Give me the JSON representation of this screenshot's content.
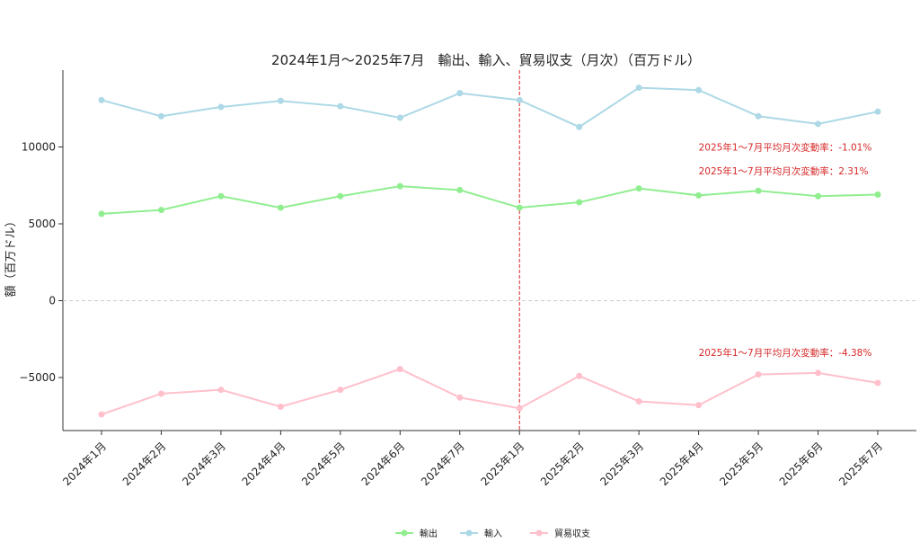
{
  "chart_data": {
    "type": "line",
    "title": "2024年1月～2025年7月　輸出、輸入、貿易収支（月次）（百万ドル）",
    "xlabel": "",
    "ylabel": "額（百万ドル）",
    "categories": [
      "2024年1月",
      "2024年2月",
      "2024年3月",
      "2024年4月",
      "2024年5月",
      "2024年6月",
      "2024年7月",
      "2025年1月",
      "2025年2月",
      "2025年3月",
      "2025年4月",
      "2025年5月",
      "2025年6月",
      "2025年7月"
    ],
    "series": [
      {
        "name": "輸出",
        "color": "#90ee90",
        "values": [
          5650,
          5900,
          6800,
          6050,
          6800,
          7450,
          7200,
          6050,
          6400,
          7300,
          6850,
          7150,
          6800,
          6900
        ]
      },
      {
        "name": "輸入",
        "color": "#add8e6",
        "values": [
          13050,
          12000,
          12600,
          13000,
          12650,
          11900,
          13500,
          13050,
          11300,
          13850,
          13700,
          12000,
          11500,
          12300
        ]
      },
      {
        "name": "貿易収支",
        "color": "#ffc0cb",
        "values": [
          -7400,
          -6050,
          -5800,
          -6900,
          -5800,
          -4450,
          -6300,
          -7000,
          -4900,
          -6550,
          -6800,
          -4800,
          -4700,
          -5350
        ]
      }
    ],
    "yticks": [
      -5000,
      0,
      5000,
      10000
    ],
    "ylim": [
      -8500,
      15000
    ],
    "grid": "dashed line at y=0",
    "vline_category": "2025年1月",
    "annotations": [
      {
        "text": "2025年1～7月平均月次変動率：-1.01%",
        "x_category": "2025年4月",
        "y": 10000
      },
      {
        "text": "2025年1～7月平均月次変動率：2.31%",
        "x_category": "2025年4月",
        "y": 8450
      },
      {
        "text": "2025年1～7月平均月次変動率：-4.38%",
        "x_category": "2025年4月",
        "y": -3350
      }
    ],
    "legend_position": "bottom-center"
  }
}
